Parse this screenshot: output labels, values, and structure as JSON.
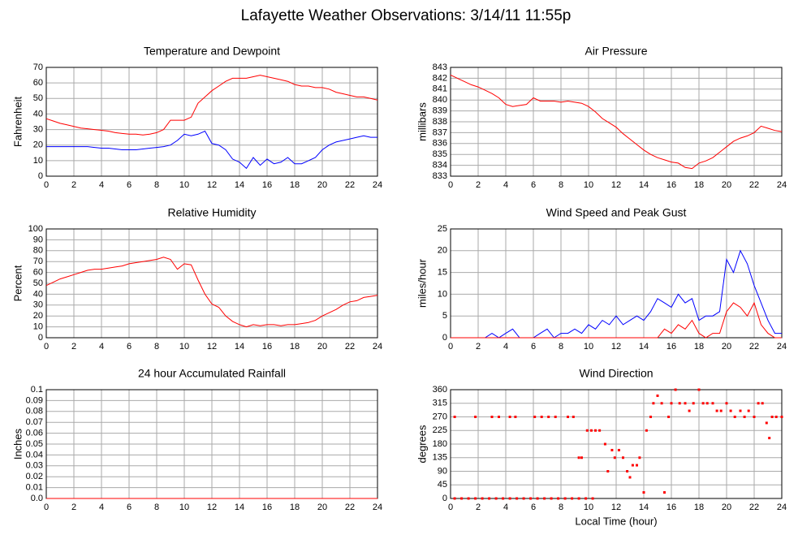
{
  "title": "Lafayette Weather Observations: 3/14/11 11:55p",
  "chart_data": [
    {
      "type": "line",
      "title": "Temperature and Dewpoint",
      "ylabel": "Fahrenheit",
      "grid": true,
      "xlim": [
        0,
        24
      ],
      "xticks": [
        0,
        2,
        4,
        6,
        8,
        10,
        12,
        14,
        16,
        18,
        20,
        22,
        24
      ],
      "ylim": [
        0,
        70
      ],
      "yticks": [
        0,
        10,
        20,
        30,
        40,
        50,
        60,
        70
      ],
      "x": [
        0,
        0.5,
        1,
        1.5,
        2,
        2.5,
        3,
        3.5,
        4,
        4.5,
        5,
        5.5,
        6,
        6.5,
        7,
        7.5,
        8,
        8.5,
        9,
        9.5,
        10,
        10.5,
        11,
        11.5,
        12,
        12.5,
        13,
        13.5,
        14,
        14.5,
        15,
        15.5,
        16,
        16.5,
        17,
        17.5,
        18,
        18.5,
        19,
        19.5,
        20,
        20.5,
        21,
        21.5,
        22,
        22.5,
        23,
        23.5,
        24
      ],
      "series": [
        {
          "color": "#ff0000",
          "values": [
            37,
            35.5,
            34,
            33,
            32,
            31,
            30.5,
            30,
            29.5,
            29,
            28,
            27.5,
            27,
            27,
            26.5,
            27,
            28,
            30,
            36,
            36,
            36,
            38,
            47,
            51,
            55,
            58,
            61,
            63,
            63,
            63,
            64,
            65,
            64,
            63,
            62,
            61,
            59,
            58,
            58,
            57,
            57,
            56,
            54,
            53,
            52,
            51,
            51,
            50,
            49
          ]
        },
        {
          "color": "#0000ff",
          "values": [
            19,
            19,
            19,
            19,
            19,
            19,
            19,
            18.5,
            18,
            18,
            17.5,
            17,
            17,
            17,
            17.5,
            18,
            18.5,
            19,
            20,
            23,
            27,
            26,
            27,
            29,
            21,
            20,
            17,
            11,
            9,
            5,
            12,
            7,
            11,
            8,
            9,
            12,
            8,
            8,
            10,
            12,
            17,
            20,
            22,
            23,
            24,
            25,
            26,
            25,
            25
          ]
        }
      ]
    },
    {
      "type": "line",
      "title": "Air Pressure",
      "ylabel": "millibars",
      "grid": true,
      "xlim": [
        0,
        24
      ],
      "xticks": [
        0,
        2,
        4,
        6,
        8,
        10,
        12,
        14,
        16,
        18,
        20,
        22,
        24
      ],
      "ylim": [
        833,
        843
      ],
      "yticks": [
        833,
        834,
        835,
        836,
        837,
        838,
        839,
        840,
        841,
        842,
        843
      ],
      "x": [
        0,
        0.5,
        1,
        1.5,
        2,
        2.5,
        3,
        3.5,
        4,
        4.5,
        5,
        5.5,
        6,
        6.5,
        7,
        7.5,
        8,
        8.5,
        9,
        9.5,
        10,
        10.5,
        11,
        11.5,
        12,
        12.5,
        13,
        13.5,
        14,
        14.5,
        15,
        15.5,
        16,
        16.5,
        17,
        17.5,
        18,
        18.5,
        19,
        19.5,
        20,
        20.5,
        21,
        21.5,
        22,
        22.5,
        23,
        23.5,
        24
      ],
      "series": [
        {
          "color": "#ff0000",
          "values": [
            842.3,
            842,
            841.7,
            841.4,
            841.2,
            840.9,
            840.6,
            840.2,
            839.6,
            839.4,
            839.5,
            839.6,
            840.2,
            839.9,
            839.9,
            839.9,
            839.8,
            839.9,
            839.8,
            839.7,
            839.4,
            838.9,
            838.3,
            837.9,
            837.5,
            836.9,
            836.4,
            835.9,
            835.4,
            835,
            834.7,
            834.5,
            834.3,
            834.2,
            833.8,
            833.7,
            834.2,
            834.4,
            834.7,
            835.2,
            835.7,
            836.2,
            836.5,
            836.7,
            837,
            837.6,
            837.4,
            837.2,
            837.1
          ]
        }
      ]
    },
    {
      "type": "line",
      "title": "Relative Humidity",
      "ylabel": "Percent",
      "grid": true,
      "xlim": [
        0,
        24
      ],
      "xticks": [
        0,
        2,
        4,
        6,
        8,
        10,
        12,
        14,
        16,
        18,
        20,
        22,
        24
      ],
      "ylim": [
        0,
        100
      ],
      "yticks": [
        0,
        10,
        20,
        30,
        40,
        50,
        60,
        70,
        80,
        90,
        100
      ],
      "x": [
        0,
        0.5,
        1,
        1.5,
        2,
        2.5,
        3,
        3.5,
        4,
        4.5,
        5,
        5.5,
        6,
        6.5,
        7,
        7.5,
        8,
        8.5,
        9,
        9.5,
        10,
        10.5,
        11,
        11.5,
        12,
        12.5,
        13,
        13.5,
        14,
        14.5,
        15,
        15.5,
        16,
        16.5,
        17,
        17.5,
        18,
        18.5,
        19,
        19.5,
        20,
        20.5,
        21,
        21.5,
        22,
        22.5,
        23,
        23.5,
        24
      ],
      "series": [
        {
          "color": "#ff0000",
          "values": [
            48,
            51,
            54,
            56,
            58,
            60,
            62,
            63,
            63,
            64,
            65,
            66,
            68,
            69,
            70,
            71,
            72,
            74,
            72,
            63,
            68,
            67,
            53,
            40,
            31,
            28,
            20,
            15,
            12,
            10,
            12,
            11,
            12,
            12,
            11,
            12,
            12,
            13,
            14,
            16,
            20,
            23,
            26,
            30,
            33,
            34,
            37,
            38,
            39
          ]
        }
      ]
    },
    {
      "type": "line",
      "title": "Wind Speed and Peak Gust",
      "ylabel": "miles/hour",
      "grid": true,
      "xlim": [
        0,
        24
      ],
      "xticks": [
        0,
        2,
        4,
        6,
        8,
        10,
        12,
        14,
        16,
        18,
        20,
        22,
        24
      ],
      "ylim": [
        0,
        25
      ],
      "yticks": [
        0,
        5,
        10,
        15,
        20,
        25
      ],
      "x": [
        0,
        0.5,
        1,
        1.5,
        2,
        2.5,
        3,
        3.5,
        4,
        4.5,
        5,
        5.5,
        6,
        6.5,
        7,
        7.5,
        8,
        8.5,
        9,
        9.5,
        10,
        10.5,
        11,
        11.5,
        12,
        12.5,
        13,
        13.5,
        14,
        14.5,
        15,
        15.5,
        16,
        16.5,
        17,
        17.5,
        18,
        18.5,
        19,
        19.5,
        20,
        20.5,
        21,
        21.5,
        22,
        22.5,
        23,
        23.5,
        24
      ],
      "series": [
        {
          "color": "#0000ff",
          "values": [
            0,
            0,
            0,
            0,
            0,
            0,
            1,
            0,
            1,
            2,
            0,
            0,
            0,
            1,
            2,
            0,
            1,
            1,
            2,
            1,
            3,
            2,
            4,
            3,
            5,
            3,
            4,
            5,
            4,
            6,
            9,
            8,
            7,
            10,
            8,
            9,
            4,
            5,
            5,
            6,
            18,
            15,
            20,
            17,
            12,
            8,
            4,
            1,
            1
          ]
        },
        {
          "color": "#ff0000",
          "values": [
            0,
            0,
            0,
            0,
            0,
            0,
            0,
            0,
            0,
            0,
            0,
            0,
            0,
            0,
            0,
            0,
            0,
            0,
            0,
            0,
            0,
            0,
            0,
            0,
            0,
            0,
            0,
            0,
            0,
            0,
            0,
            2,
            1,
            3,
            2,
            4,
            1,
            0,
            1,
            1,
            6,
            8,
            7,
            5,
            8,
            3,
            1,
            0,
            0
          ]
        }
      ]
    },
    {
      "type": "line",
      "title": "24 hour Accumulated Rainfall",
      "ylabel": "Inches",
      "grid": true,
      "xlim": [
        0,
        24
      ],
      "xticks": [
        0,
        2,
        4,
        6,
        8,
        10,
        12,
        14,
        16,
        18,
        20,
        22,
        24
      ],
      "ylim": [
        0,
        0.1
      ],
      "yticks": [
        {
          "value": 0,
          "label": "0.0"
        },
        0.01,
        0.02,
        0.03,
        0.04,
        0.05,
        0.06,
        0.07,
        0.08,
        0.09,
        0.1
      ],
      "x": [
        0,
        24
      ],
      "series": [
        {
          "color": "#ff0000",
          "values": [
            0,
            0
          ]
        }
      ]
    },
    {
      "type": "scatter",
      "title": "Wind Direction",
      "ylabel": "degrees",
      "xlabel": "Local Time (hour)",
      "grid": true,
      "xlim": [
        0,
        24
      ],
      "xticks": [
        0,
        2,
        4,
        6,
        8,
        10,
        12,
        14,
        16,
        18,
        20,
        22,
        24
      ],
      "ylim": [
        0,
        360
      ],
      "yticks": [
        0,
        45,
        90,
        135,
        180,
        225,
        270,
        315,
        360
      ],
      "x": [
        0.3,
        0.8,
        1.3,
        1.8,
        2.3,
        2.8,
        3.3,
        3.8,
        4.3,
        4.8,
        5.3,
        5.8,
        6.3,
        6.8,
        7.3,
        7.8,
        8.3,
        8.8,
        9.3,
        9.8,
        10.3,
        0.3,
        1.8,
        3.0,
        3.5,
        4.3,
        4.7,
        6.1,
        6.6,
        7.1,
        7.6,
        8.5,
        8.9,
        9.3,
        9.5,
        9.9,
        10.2,
        10.5,
        10.8,
        11.2,
        11.4,
        11.7,
        11.9,
        12.2,
        12.5,
        12.8,
        13,
        13.2,
        13.5,
        13.7,
        14,
        14.2,
        14.5,
        14.7,
        15,
        15.3,
        15.5,
        15.8,
        16,
        16.3,
        16.6,
        17,
        17.3,
        17.6,
        18,
        18.3,
        18.6,
        19,
        19.3,
        19.6,
        20,
        20.3,
        20.6,
        21,
        21.3,
        21.6,
        22,
        22.3,
        22.6,
        22.9,
        23.1,
        23.3,
        23.6,
        24
      ],
      "series": [
        {
          "color": "#ff0000",
          "values": [
            0,
            0,
            0,
            0,
            0,
            0,
            0,
            0,
            0,
            0,
            0,
            0,
            0,
            0,
            0,
            0,
            0,
            0,
            0,
            0,
            0,
            270,
            270,
            270,
            270,
            270,
            270,
            270,
            270,
            270,
            270,
            270,
            270,
            135,
            135,
            225,
            225,
            225,
            225,
            180,
            90,
            160,
            135,
            160,
            135,
            90,
            70,
            110,
            110,
            135,
            20,
            225,
            270,
            315,
            340,
            315,
            20,
            270,
            315,
            360,
            315,
            315,
            290,
            315,
            360,
            315,
            315,
            315,
            290,
            290,
            315,
            290,
            270,
            290,
            270,
            290,
            270,
            315,
            315,
            250,
            200,
            270,
            270,
            270
          ]
        }
      ]
    }
  ]
}
